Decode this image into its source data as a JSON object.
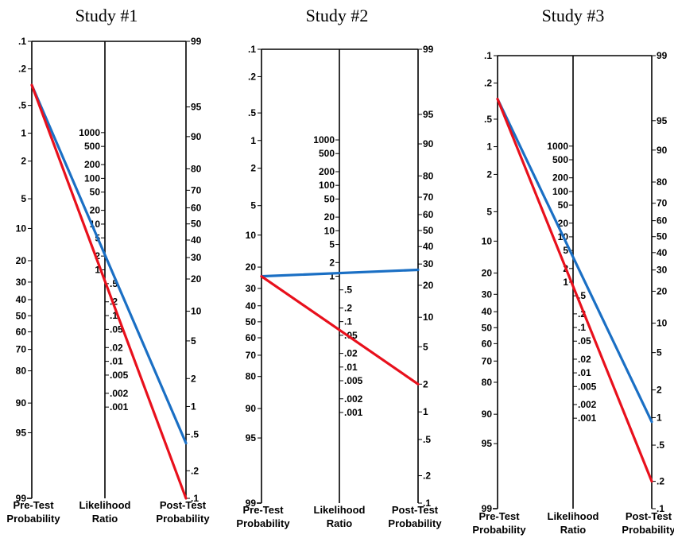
{
  "chart_data": {
    "type": "nomogram",
    "axes": {
      "pre": {
        "title_lines": [
          "Pre-Test",
          "Probability"
        ],
        "ticks": [
          ".1",
          ".2",
          ".5",
          "1",
          "2",
          "5",
          "10",
          "20",
          "30",
          "40",
          "50",
          "60",
          "70",
          "80",
          "90",
          "95",
          "99"
        ]
      },
      "lr": {
        "title_lines": [
          "Likelihood",
          "Ratio"
        ],
        "ticks": [
          "1000",
          "500",
          "200",
          "100",
          "50",
          "20",
          "10",
          "5",
          "2",
          "1",
          ".5",
          ".2",
          ".1",
          ".05",
          ".02",
          ".01",
          ".005",
          ".002",
          ".001"
        ]
      },
      "post": {
        "title_lines": [
          "Post-Test",
          "Probability"
        ],
        "ticks": [
          "99",
          "95",
          "90",
          "80",
          "70",
          "60",
          "50",
          "40",
          "30",
          "20",
          "10",
          "5",
          "2",
          "1",
          ".5",
          ".2",
          ".1"
        ]
      }
    },
    "panels": [
      {
        "title": "Study #1",
        "lines": [
          {
            "color": "#1a6fc4",
            "pre": 0.3,
            "post": 0.4
          },
          {
            "color": "#e8101c",
            "pre": 0.3,
            "post": 0.1
          }
        ]
      },
      {
        "title": "Study #2",
        "lines": [
          {
            "color": "#1a6fc4",
            "pre": 24,
            "post": 27
          },
          {
            "color": "#e8101c",
            "pre": 24,
            "post": 2
          }
        ]
      },
      {
        "title": "Study #3",
        "lines": [
          {
            "color": "#1a6fc4",
            "pre": 0.3,
            "post": 0.9
          },
          {
            "color": "#e8101c",
            "pre": 0.3,
            "post": 0.2
          }
        ]
      }
    ]
  }
}
